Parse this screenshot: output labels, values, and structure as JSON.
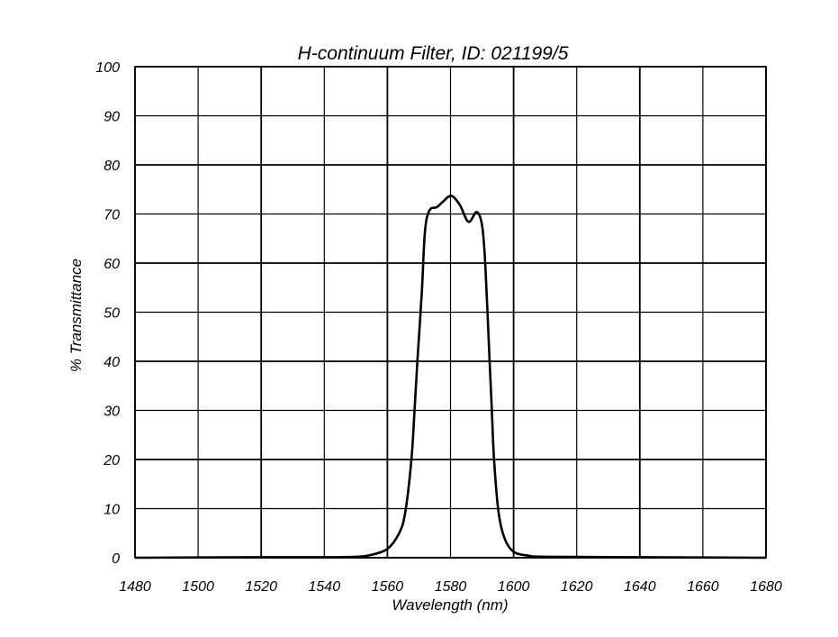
{
  "chart_data": {
    "type": "line",
    "title": "H-continuum Filter, ID: 021199/5",
    "xlabel": "Wavelength (nm)",
    "ylabel": "% Transmittance",
    "xlim": [
      1480,
      1680
    ],
    "ylim": [
      0,
      100
    ],
    "xticks": [
      1480,
      1500,
      1520,
      1540,
      1560,
      1580,
      1600,
      1620,
      1640,
      1660,
      1680
    ],
    "yticks": [
      0,
      10,
      20,
      30,
      40,
      50,
      60,
      70,
      80,
      90,
      100
    ],
    "grid": true,
    "line_color": "#000000",
    "series": [
      {
        "x": [
          1480,
          1520,
          1540,
          1550,
          1554.3,
          1560,
          1563.8,
          1565.7,
          1567.6,
          1568.6,
          1569.5,
          1570.9,
          1571.9,
          1573.3,
          1575.7,
          1577.6,
          1580.2,
          1582.9,
          1585.7,
          1588.3,
          1590,
          1591,
          1592.4,
          1593.1,
          1593.8,
          1595.2,
          1597.1,
          1600,
          1604.8,
          1610,
          1640,
          1680
        ],
        "y": [
          0,
          0.1,
          0.1,
          0.2,
          0.5,
          1.8,
          5.1,
          9.4,
          19.9,
          30,
          40,
          54,
          66.4,
          70.7,
          71.4,
          72.5,
          73.7,
          71.9,
          68.4,
          70.4,
          67.7,
          60,
          40,
          30,
          20,
          9.4,
          4,
          1.2,
          0.4,
          0.2,
          0.1,
          0
        ]
      }
    ]
  }
}
